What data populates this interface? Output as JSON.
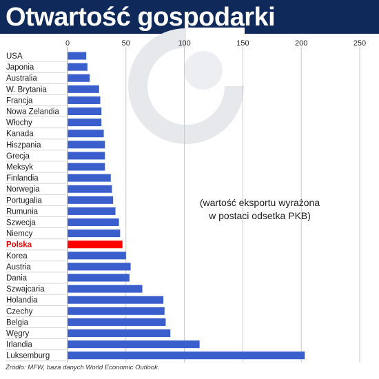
{
  "header": {
    "title": "Otwartość gospodarki"
  },
  "annotation": {
    "line1": "(wartość eksportu wyrażona",
    "line2": "w postaci odsetka PKB)"
  },
  "source": "Źródło: MFW, baza danych World Economic Outlook.",
  "colors": {
    "header_bg": "#0f2a5a",
    "bar": "#3a5fcd",
    "highlight_bar": "#ff0000",
    "highlight_label": "#e00000"
  },
  "chart_data": {
    "type": "bar",
    "orientation": "horizontal",
    "title": "Otwartość gospodarki",
    "xlim": [
      0,
      250
    ],
    "xticks": [
      0,
      50,
      100,
      150,
      200,
      250
    ],
    "grid": true,
    "highlight": "Polska",
    "categories": [
      "USA",
      "Japonia",
      "Australia",
      "W. Brytania",
      "Francja",
      "Nowa Zelandia",
      "Włochy",
      "Kanada",
      "Hiszpania",
      "Grecja",
      "Meksyk",
      "Finlandia",
      "Norwegia",
      "Portugalia",
      "Rumunia",
      "Szwecja",
      "Niemcy",
      "Polska",
      "Korea",
      "Austria",
      "Dania",
      "Szwajcaria",
      "Holandia",
      "Czechy",
      "Belgia",
      "Węgry",
      "Irlandia",
      "Luksemburg"
    ],
    "values": [
      16,
      17,
      19,
      27,
      28,
      29,
      29,
      31,
      32,
      32,
      32,
      37,
      38,
      39,
      41,
      44,
      45,
      47,
      50,
      54,
      53,
      64,
      82,
      83,
      84,
      88,
      113,
      203
    ]
  }
}
